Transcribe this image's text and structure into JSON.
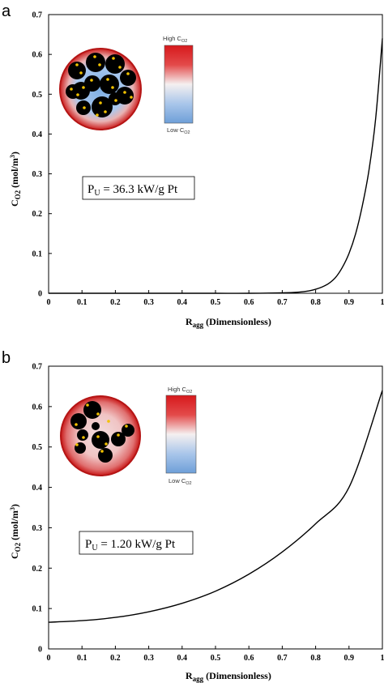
{
  "chart_data": [
    {
      "type": "line",
      "panel_label": "a",
      "xlabel_main": "R",
      "xlabel_sub": "agg",
      "xlabel_rest": "(Dimensionless)",
      "ylabel_main": "C",
      "ylabel_sub": "O2",
      "ylabel_unit_pre": "(mol/m",
      "ylabel_unit_sup": "3",
      "ylabel_unit_post": ")",
      "xlim": [
        0,
        1
      ],
      "ylim": [
        0,
        0.7
      ],
      "xticks": [
        0,
        0.1,
        0.2,
        0.3,
        0.4,
        0.5,
        0.6,
        0.7,
        0.8,
        0.9,
        1
      ],
      "yticks": [
        0,
        0.1,
        0.2,
        0.3,
        0.4,
        0.5,
        0.6,
        0.7
      ],
      "xtick_labels": [
        "0",
        "0.1",
        "0.2",
        "0.3",
        "0.4",
        "0.5",
        "0.6",
        "0.7",
        "0.8",
        "0.9",
        "1"
      ],
      "ytick_labels": [
        "0",
        "0.1",
        "0.2",
        "0.3",
        "0.4",
        "0.5",
        "0.6",
        "0.7"
      ],
      "grid": false,
      "annotation": {
        "prefix": "P",
        "sub": "U",
        "text": " = 36.3 kW/g Pt"
      },
      "colorbar": {
        "high_pre": "High C",
        "high_sub": "O2",
        "low_pre": "Low C",
        "low_sub": "O2",
        "high_color": "#d7191c",
        "low_color": "#6e9fd8"
      },
      "series": [
        {
          "color": "#000000",
          "x": [
            0,
            0.1,
            0.2,
            0.3,
            0.4,
            0.5,
            0.6,
            0.7,
            0.75,
            0.78,
            0.8,
            0.82,
            0.84,
            0.86,
            0.88,
            0.9,
            0.92,
            0.94,
            0.96,
            0.98,
            1.0
          ],
          "y": [
            0,
            0,
            0,
            0,
            0,
            0,
            0,
            0.001,
            0.003,
            0.006,
            0.01,
            0.016,
            0.025,
            0.04,
            0.065,
            0.1,
            0.15,
            0.22,
            0.31,
            0.44,
            0.64
          ]
        }
      ]
    },
    {
      "type": "line",
      "panel_label": "b",
      "xlabel_main": "R",
      "xlabel_sub": "agg",
      "xlabel_rest": "(Dimensionless)",
      "ylabel_main": "C",
      "ylabel_sub": "O2",
      "ylabel_unit_pre": "(mol/m",
      "ylabel_unit_sup": "3",
      "ylabel_unit_post": ")",
      "xlim": [
        0,
        1
      ],
      "ylim": [
        0,
        0.7
      ],
      "xticks": [
        0,
        0.1,
        0.2,
        0.3,
        0.4,
        0.5,
        0.6,
        0.7,
        0.8,
        0.9,
        1
      ],
      "yticks": [
        0,
        0.1,
        0.2,
        0.3,
        0.4,
        0.5,
        0.6,
        0.7
      ],
      "xtick_labels": [
        "0",
        "0.1",
        "0.2",
        "0.3",
        "0.4",
        "0.5",
        "0.6",
        "0.7",
        "0.8",
        "0.9",
        "1"
      ],
      "ytick_labels": [
        "0",
        "0.1",
        "0.2",
        "0.3",
        "0.4",
        "0.5",
        "0.6",
        "0.7"
      ],
      "grid": false,
      "annotation": {
        "prefix": "P",
        "sub": "U",
        "text": " = 1.20 kW/g Pt"
      },
      "colorbar": {
        "high_pre": "High C",
        "high_sub": "O2",
        "low_pre": "Low C",
        "low_sub": "O2",
        "high_color": "#d7191c",
        "low_color": "#6e9fd8"
      },
      "series": [
        {
          "color": "#000000",
          "x": [
            0,
            0.1,
            0.2,
            0.3,
            0.4,
            0.5,
            0.6,
            0.7,
            0.8,
            0.9,
            1.0
          ],
          "y": [
            0.066,
            0.07,
            0.078,
            0.092,
            0.113,
            0.143,
            0.185,
            0.24,
            0.31,
            0.4,
            0.64
          ]
        }
      ]
    }
  ]
}
